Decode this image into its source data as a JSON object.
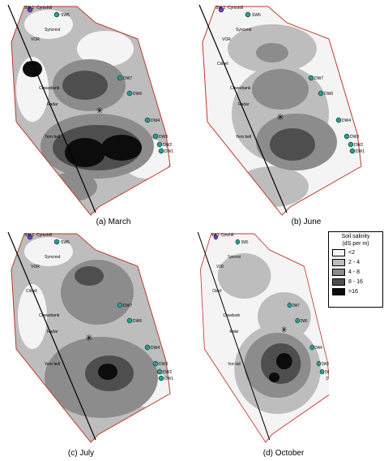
{
  "captions": {
    "march": "(a) March",
    "june": "(b) June",
    "july": "(c) July",
    "october": "(d) October"
  },
  "map_labels": {
    "sw1": "SW 1",
    "cymshill": "Cymshill",
    "sw5": "SW5",
    "syncrest": "Syncrest",
    "dw7": "DW7",
    "dw6": "DW6",
    "dw4": "DW4",
    "dw3": "DW3",
    "dw2": "DW2",
    "dw1": "DW1",
    "clinell": "Clinell",
    "cuwarbank": "Cuwarbank",
    "radar": "Radar",
    "yernbell": "Yern bell",
    "vor": "VOR"
  },
  "legend": {
    "title_line1": "Soil salinity",
    "title_line2": "(dS per m)",
    "classes": [
      {
        "label": "<2",
        "color": "#f4f4f4"
      },
      {
        "label": "2 - 4",
        "color": "#bdbdbd"
      },
      {
        "label": "4 - 8",
        "color": "#8c8c8c"
      },
      {
        "label": "8 - 16",
        "color": "#4e4e4e"
      },
      {
        "label": ">16",
        "color": "#0c0c0c"
      }
    ]
  }
}
